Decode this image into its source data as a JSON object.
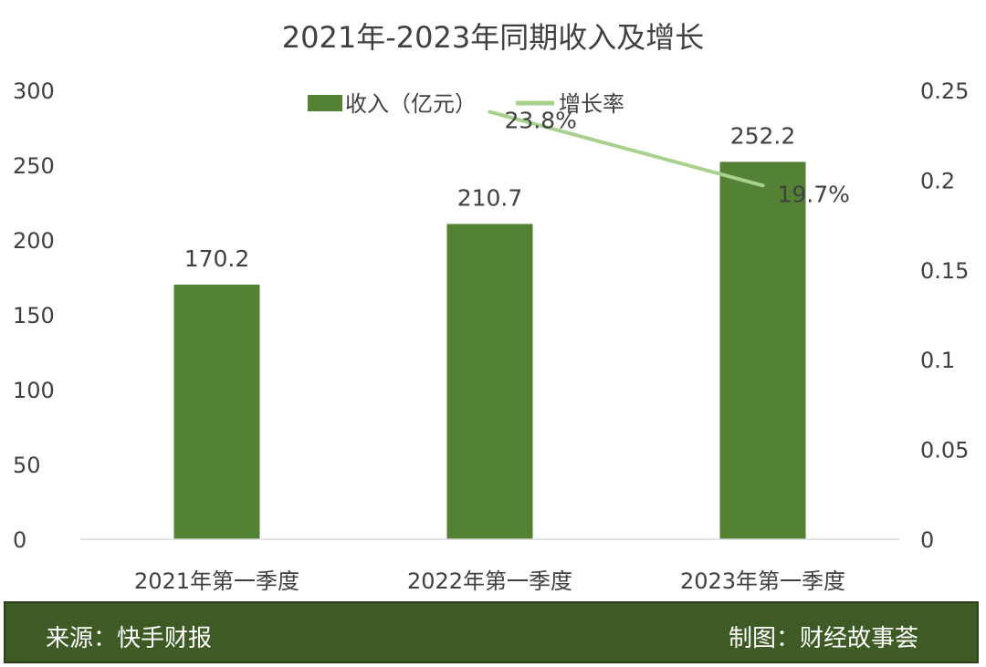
{
  "chart_data": {
    "type": "bar",
    "title": "2021年-2023年同期收入及增长",
    "categories": [
      "2021年第一季度",
      "2022年第一季度",
      "2023年第一季度"
    ],
    "series": [
      {
        "name": "收入（亿元）",
        "type": "bar",
        "axis": "left",
        "values": [
          170.2,
          210.7,
          252.2
        ],
        "labels": [
          "170.2",
          "210.7",
          "252.2"
        ],
        "color": "#548235"
      },
      {
        "name": "增长率",
        "type": "line",
        "axis": "right",
        "values": [
          null,
          0.238,
          0.197
        ],
        "labels": [
          "",
          "23.8%",
          "19.7%"
        ],
        "color": "#a9d18e"
      }
    ],
    "y_left": {
      "range": [
        0,
        300
      ],
      "ticks": [
        "300",
        "250",
        "200",
        "150",
        "100",
        "50",
        "0"
      ]
    },
    "y_right": {
      "range": [
        0,
        0.25
      ],
      "ticks": [
        "0.25",
        "0.2",
        "0.15",
        "0.1",
        "0.05",
        "0"
      ]
    },
    "legend_position": "top",
    "grid": false
  },
  "footer": {
    "source": "来源：快手财报",
    "credit": "制图：财经故事荟"
  },
  "colors": {
    "bar": "#548235",
    "line": "#a9d18e",
    "footer_bg": "#3e5a25",
    "text": "#404040"
  }
}
